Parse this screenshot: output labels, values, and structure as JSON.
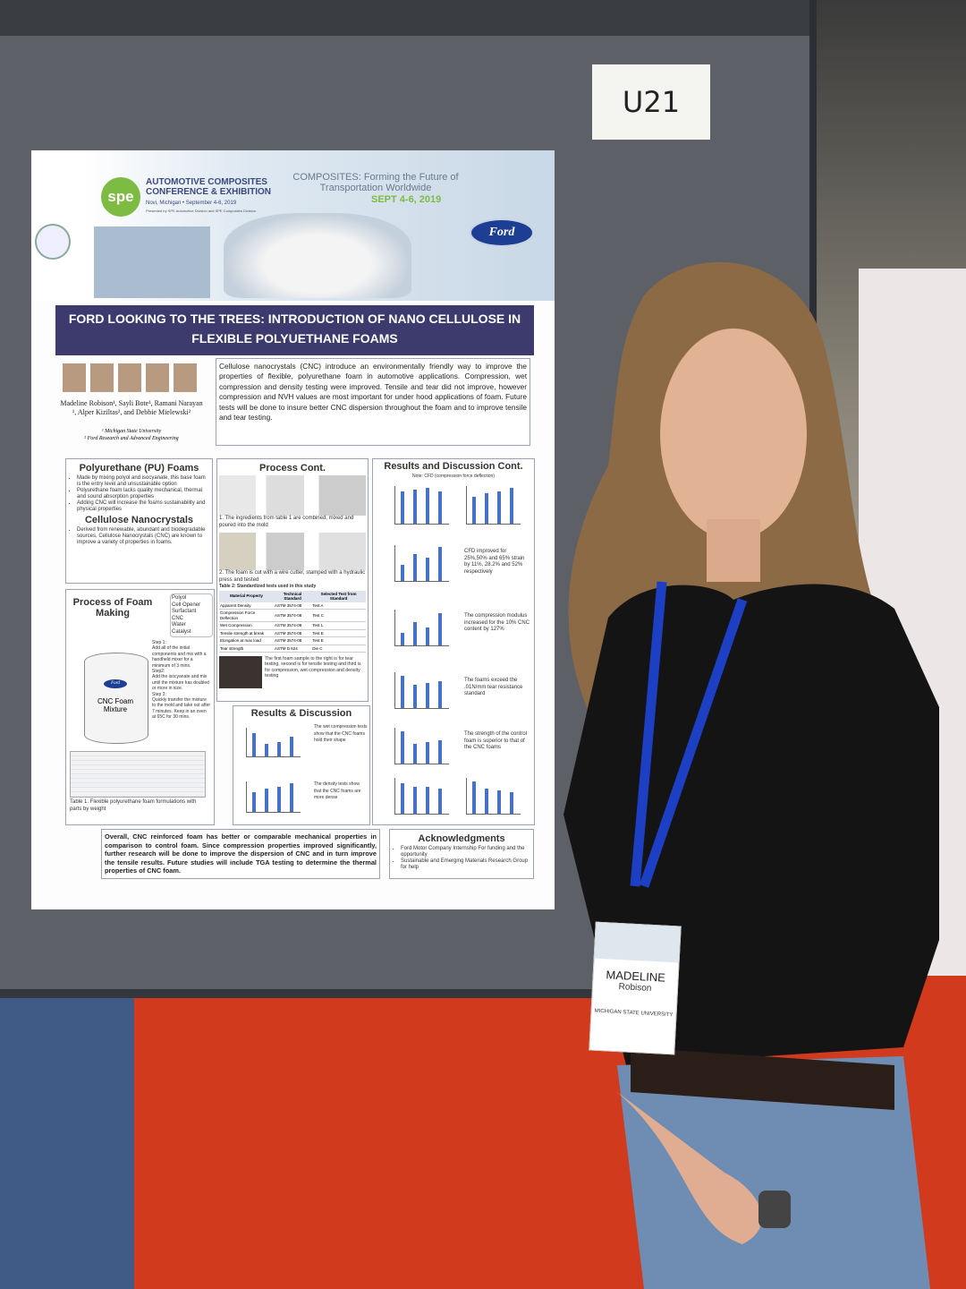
{
  "sign": {
    "label": "U21"
  },
  "poster": {
    "conference": {
      "logo": "spe",
      "name": "AUTOMOTIVE COMPOSITES CONFERENCE & EXHIBITION",
      "dates": "Novi, Michigan • September 4-6, 2019",
      "presenter": "Presented by SPE Automotive Division and SPE Composites Division",
      "theme": "COMPOSITES: Forming the Future of Transportation Worldwide",
      "theme_dates": "SEPT 4-6, 2019",
      "sponsor": "Ford"
    },
    "title": "FORD LOOKING TO THE TREES: INTRODUCTION OF NANO CELLULOSE IN FLEXIBLE POLYUETHANE FOAMS",
    "authors": "Madeline Robison¹, Sayli Bote¹, Ramani Narayan ¹, Alper Kiziltas², and Debbie Mielewski²",
    "affiliations": [
      "¹ Michigan State University",
      "² Ford Research and Advanced Engineering"
    ],
    "abstract": "Cellulose nanocrystals (CNC) introduce an environmentally friendly way to improve the properties of flexible, polyurethane foam in automotive applications. Compression, wet compression and density testing were improved. Tensile and tear did not improve, however compression and NVH values are most important for under hood applications of foam. Future tests will be done to insure better CNC dispersion throughout the foam and to improve tensile and tear testing.",
    "pu_foams": {
      "heading": "Polyurethane (PU) Foams",
      "bullets": [
        "Made by mixing polyol and isocyanate, this base foam is the entry level and unsustainable option",
        "Polyurethane foam lacks quality mechanical, thermal and sound absorption properties",
        "Adding CNC will increase the foams sustainability and physical properties"
      ]
    },
    "cnc": {
      "heading": "Cellulose Nanocrystals",
      "bullets": [
        "Derived from renewable, abundant and biodegradable sources, Cellulose Nanocrystals (CNC) are known to improve a variety of properties in foams."
      ]
    },
    "process": {
      "heading": "Process of Foam Making",
      "ingredients": [
        "Polyol",
        "Cell Opener",
        "Surfactant",
        "CNC",
        "Water",
        "Catalyst"
      ],
      "steps": [
        "Step 1:",
        "Add all of the initial components and mix with a handheld mixer for a minimum of 3 mins.",
        "Step2:",
        "Add the isocyanate and mix until the mixture has doubled or more in size.",
        "Step 3:",
        "Quickly transfer the mixture to the mold and take out after 7 minutes. Keep in an oven at 65C for 30 mins."
      ],
      "container_brand": "Ford",
      "mixture": "CNC Foam Mixture",
      "table_caption": "Table 1. Flexible polyurethane foam formulations with parts by weight"
    },
    "process_cont": {
      "heading": "Process Cont.",
      "step1": "1.  The ingredients from table 1 are combined, mixed and poured into the mold",
      "step2": "2.  The foam is cut with a wire cutter, stamped with a hydraulic press and tested",
      "table_title": "Table 2: Standardized tests used in this study",
      "table": {
        "header": [
          "Material Property",
          "Technical Standard",
          "Selected Test from Standard"
        ],
        "rows": [
          [
            "Apparent Density",
            "ASTM 3574-08",
            "Test A"
          ],
          [
            "Compression Force Deflection",
            "ASTM 3574-08",
            "Test C"
          ],
          [
            "Wet Compression",
            "ASTM 3574-08",
            "Test L"
          ],
          [
            "Tensile strength at break",
            "ASTM 3574-08",
            "Test E"
          ],
          [
            "Elongation at max load",
            "ASTM 3574-08",
            "Test E"
          ],
          [
            "Tear strength",
            "ASTM D 624",
            "Die C"
          ]
        ]
      },
      "samples_note": "The first foam sample to the right is for tear testing, second is for tensile testing and third is for compression, wet compression and density testing"
    },
    "results": {
      "heading": "Results & Discussion",
      "notes": [
        "The wet compression tests show that the CNC foams hold their shape",
        "The density tests show that the CNC foams are more dense"
      ]
    },
    "results_cont": {
      "heading": "Results and Discussion Cont.",
      "note": "Note: CFD (compression force deflection)",
      "notes": [
        "CFD improved for 25%,50% and 65% strain by 11%, 28.2% and 52% respectively",
        "The compression modulus increased for the 10% CNC content by 127%",
        "The foams exceed the .01N/mm tear resistance standard",
        "The strength of the control foam is superior to that of the CNC foams"
      ]
    },
    "conclusion": "Overall, CNC reinforced foam has better or comparable mechanical properties in comparison to control foam. Since compression properties improved significantly, further research will be done to improve the dispersion of CNC and in turn improve the tensile results. Future studies will include TGA testing to determine the thermal properties of CNC foam.",
    "acknowledgments": {
      "heading": "Acknowledgments",
      "items": [
        "Ford Motor Company Internship For funding and the opportunity",
        "Sustainable and Emerging Materials Research Group for help"
      ]
    }
  },
  "badge": {
    "first_name": "MADELINE",
    "last_name": "Robison",
    "school": "MICHIGAN STATE UNIVERSITY"
  }
}
